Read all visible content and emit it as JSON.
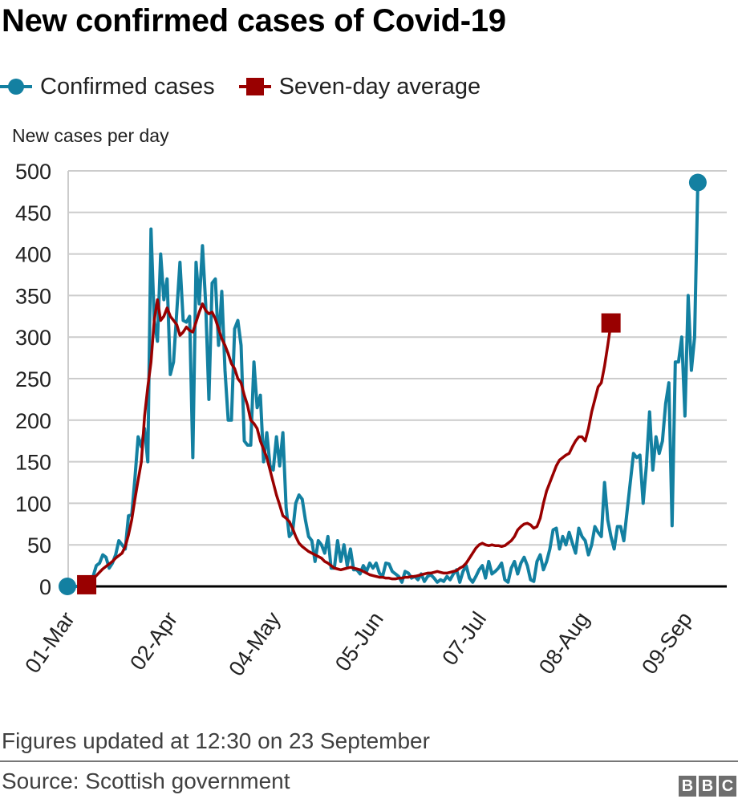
{
  "header": {
    "title": "New confirmed cases of Covid-19"
  },
  "legend": {
    "items": [
      {
        "label": "Confirmed cases",
        "marker": "circle-line",
        "color": "#1380A1"
      },
      {
        "label": "Seven-day average",
        "marker": "square-line",
        "color": "#990000"
      }
    ]
  },
  "footer": {
    "note": "Figures updated at 12:30 on 23 September",
    "source": "Source: Scottish government",
    "logo_letters": [
      "B",
      "B",
      "C"
    ]
  },
  "chart_data": {
    "type": "line",
    "title": "New confirmed cases of Covid-19",
    "xlabel": "",
    "ylabel": "New cases per day",
    "ylim": [
      0,
      500
    ],
    "yticks": [
      0,
      50,
      100,
      150,
      200,
      250,
      300,
      350,
      400,
      450,
      500
    ],
    "x_start_date": "01-Mar",
    "x_end_date": "22-Sep",
    "xticks": [
      {
        "day": 0,
        "label": "01-Mar"
      },
      {
        "day": 32,
        "label": "02-Apr"
      },
      {
        "day": 64,
        "label": "04-May"
      },
      {
        "day": 96,
        "label": "05-Jun"
      },
      {
        "day": 128,
        "label": "07-Jul"
      },
      {
        "day": 160,
        "label": "08-Aug"
      },
      {
        "day": 192,
        "label": "09-Sep"
      }
    ],
    "grid": true,
    "legend_position": "top-left",
    "series": [
      {
        "name": "Confirmed cases",
        "color": "#1380A1",
        "start_day": 0,
        "end_marker": "circle",
        "start_marker": "circle",
        "values": [
          0,
          0,
          0,
          0,
          1,
          1,
          3,
          5,
          12,
          25,
          28,
          38,
          35,
          22,
          28,
          38,
          55,
          50,
          45,
          85,
          86,
          130,
          180,
          168,
          190,
          150,
          430,
          320,
          295,
          400,
          345,
          370,
          255,
          270,
          330,
          390,
          320,
          318,
          325,
          155,
          390,
          340,
          410,
          340,
          225,
          365,
          370,
          290,
          355,
          260,
          200,
          200,
          310,
          320,
          290,
          175,
          170,
          170,
          270,
          215,
          230,
          150,
          185,
          145,
          140,
          180,
          145,
          185,
          95,
          60,
          65,
          100,
          110,
          105,
          80,
          60,
          55,
          30,
          55,
          50,
          40,
          60,
          22,
          22,
          55,
          30,
          50,
          25,
          45,
          20,
          20,
          15,
          25,
          18,
          28,
          22,
          28,
          16,
          12,
          28,
          27,
          18,
          15,
          12,
          5,
          18,
          16,
          10,
          12,
          8,
          15,
          6,
          12,
          14,
          10,
          5,
          8,
          6,
          12,
          8,
          15,
          20,
          5,
          18,
          25,
          10,
          5,
          12,
          20,
          25,
          10,
          30,
          15,
          18,
          22,
          28,
          8,
          5,
          22,
          30,
          15,
          28,
          35,
          25,
          8,
          6,
          30,
          38,
          20,
          30,
          45,
          68,
          70,
          45,
          60,
          50,
          65,
          52,
          40,
          70,
          60,
          55,
          38,
          50,
          72,
          65,
          60,
          125,
          80,
          60,
          45,
          72,
          72,
          55,
          90,
          125,
          160,
          155,
          158,
          100,
          145,
          210,
          140,
          180,
          160,
          175,
          220,
          245,
          73,
          270,
          270,
          300,
          205,
          350,
          260,
          300,
          486
        ]
      },
      {
        "name": "Seven-day average",
        "color": "#990000",
        "start_day": 6,
        "end_marker": "square",
        "start_marker": "square",
        "values": [
          2,
          5,
          9,
          13,
          17,
          21,
          24,
          27,
          30,
          34,
          37,
          40,
          48,
          62,
          80,
          105,
          128,
          150,
          205,
          240,
          270,
          320,
          345,
          320,
          325,
          335,
          325,
          320,
          315,
          302,
          306,
          312,
          308,
          306,
          318,
          330,
          340,
          332,
          328,
          330,
          322,
          310,
          298,
          290,
          280,
          268,
          262,
          250,
          245,
          230,
          218,
          200,
          196,
          190,
          175,
          165,
          155,
          140,
          125,
          110,
          98,
          85,
          82,
          78,
          70,
          60,
          52,
          48,
          45,
          42,
          40,
          38,
          36,
          34,
          30,
          28,
          25,
          22,
          21,
          20,
          21,
          22,
          23,
          22,
          21,
          20,
          18,
          16,
          14,
          13,
          12,
          11,
          11,
          10,
          10,
          9,
          9,
          10,
          10,
          11,
          11,
          12,
          12,
          13,
          14,
          15,
          16,
          16,
          17,
          18,
          17,
          16,
          16,
          17,
          18,
          19,
          22,
          24,
          28,
          34,
          40,
          46,
          50,
          52,
          50,
          49,
          50,
          49,
          49,
          48,
          49,
          52,
          55,
          60,
          68,
          72,
          75,
          76,
          74,
          70,
          72,
          82,
          100,
          115,
          125,
          135,
          145,
          152,
          155,
          158,
          160,
          168,
          175,
          180,
          180,
          175,
          190,
          210,
          225,
          240,
          245,
          265,
          290,
          317
        ]
      }
    ]
  }
}
